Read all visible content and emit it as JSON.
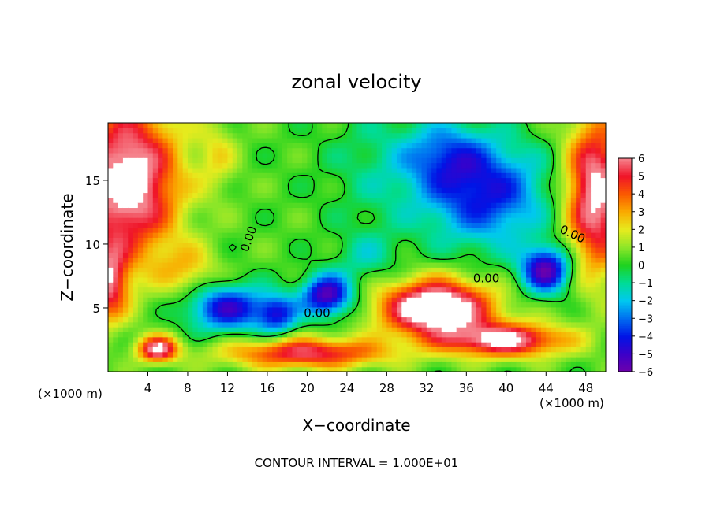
{
  "chart_data": {
    "type": "heatmap",
    "title": "zonal velocity",
    "xlabel": "X−coordinate",
    "ylabel": "Z−coordinate",
    "x_unit_label": "(×1000 m)",
    "x_unit_label_right": "(×1000 m)",
    "footer": "CONTOUR INTERVAL = 1.000E+01",
    "xlim": [
      0,
      50
    ],
    "ylim": [
      0,
      19.5
    ],
    "x_ticks": [
      4,
      8,
      12,
      16,
      20,
      24,
      28,
      32,
      36,
      40,
      44,
      48
    ],
    "y_ticks": [
      5,
      10,
      15
    ],
    "colorbar": {
      "range": [
        -6,
        6
      ],
      "ticks": [
        6,
        5,
        4,
        3,
        2,
        1,
        0,
        -1,
        -2,
        -3,
        -4,
        -5,
        -6
      ],
      "tick_labels": [
        "6",
        "5",
        "4",
        "3",
        "2",
        "1",
        "0",
        "−1",
        "−2",
        "−3",
        "−4",
        "−5",
        "−6"
      ],
      "overflow_color": "#ffffff"
    },
    "contour_labels": [
      {
        "text": "0.00",
        "x": 14.5,
        "y": 10.3,
        "rotate": -70
      },
      {
        "text": "0.00",
        "x": 21.0,
        "y": 4.3,
        "rotate": 0
      },
      {
        "text": "0.00",
        "x": 38.0,
        "y": 7.0,
        "rotate": 0
      },
      {
        "text": "0.00",
        "x": 46.5,
        "y": 10.5,
        "rotate": 25
      }
    ],
    "contour_color": "#000000",
    "grid": false,
    "notes_on_field": [
      {
        "region": "left upper",
        "approx_value": "> 6"
      },
      {
        "region": "x 34-42, z 11-17",
        "approx_value": "-4"
      },
      {
        "region": "x 28-40, z 2-7",
        "approx_value": "> 6"
      }
    ]
  }
}
